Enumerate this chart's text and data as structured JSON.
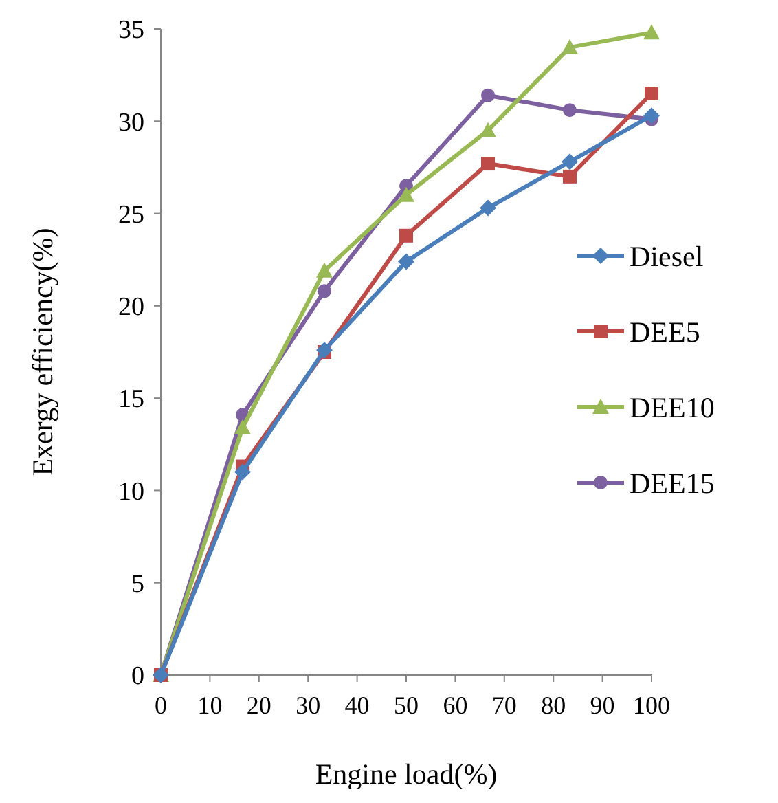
{
  "chart_data": {
    "type": "line",
    "xlabel": "Engine load(%)",
    "ylabel": "Exergy efficiency(%)",
    "x": [
      0,
      16.67,
      33.33,
      50,
      66.67,
      83.33,
      100
    ],
    "xlim": [
      0,
      100
    ],
    "xticks": [
      0,
      10,
      20,
      30,
      40,
      50,
      60,
      70,
      80,
      90,
      100
    ],
    "ylim": [
      0,
      35
    ],
    "yticks": [
      0,
      5,
      10,
      15,
      20,
      25,
      30,
      35
    ],
    "grid": false,
    "legend": "right",
    "series": [
      {
        "name": "Diesel",
        "color": "#4a7ebb",
        "marker": "diamond",
        "values": [
          0,
          11,
          17.6,
          22.4,
          25.3,
          27.8,
          30.3
        ]
      },
      {
        "name": "DEE5",
        "color": "#be4b48",
        "marker": "square",
        "values": [
          0,
          11.3,
          17.5,
          23.8,
          27.7,
          27.0,
          31.5
        ]
      },
      {
        "name": "DEE10",
        "color": "#98b954",
        "marker": "triangle",
        "values": [
          0,
          13.4,
          21.9,
          26.0,
          29.5,
          34.0,
          34.8
        ]
      },
      {
        "name": "DEE15",
        "color": "#7d60a0",
        "marker": "circle",
        "values": [
          0,
          14.1,
          20.8,
          26.5,
          31.4,
          30.6,
          30.1
        ]
      }
    ]
  }
}
